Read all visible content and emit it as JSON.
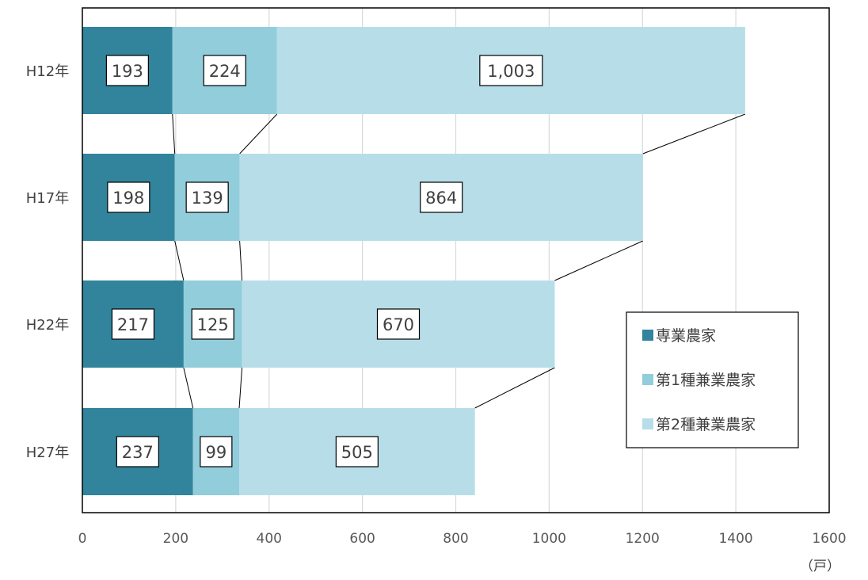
{
  "chart_data": {
    "type": "bar",
    "orientation": "horizontal",
    "stacked": true,
    "categories": [
      "H12年",
      "H17年",
      "H22年",
      "H27年"
    ],
    "series": [
      {
        "name": "専業農家",
        "values": [
          193,
          198,
          217,
          237
        ],
        "labels": [
          "193",
          "198",
          "217",
          "237"
        ],
        "color": "#31849B"
      },
      {
        "name": "第1種兼業農家",
        "values": [
          224,
          139,
          125,
          99
        ],
        "labels": [
          "224",
          "139",
          "125",
          "99"
        ],
        "color": "#92CDDC"
      },
      {
        "name": "第2種兼業農家",
        "values": [
          1003,
          864,
          670,
          505
        ],
        "labels": [
          "1,003",
          "864",
          "670",
          "505"
        ],
        "color": "#B7DEE8"
      }
    ],
    "xlim": [
      0,
      1600
    ],
    "xticks": [
      "0",
      "200",
      "400",
      "600",
      "800",
      "1000",
      "1200",
      "1400",
      "1600"
    ],
    "unit": "（戸）",
    "grid": true,
    "series_lines": true,
    "legend_position": "right"
  }
}
